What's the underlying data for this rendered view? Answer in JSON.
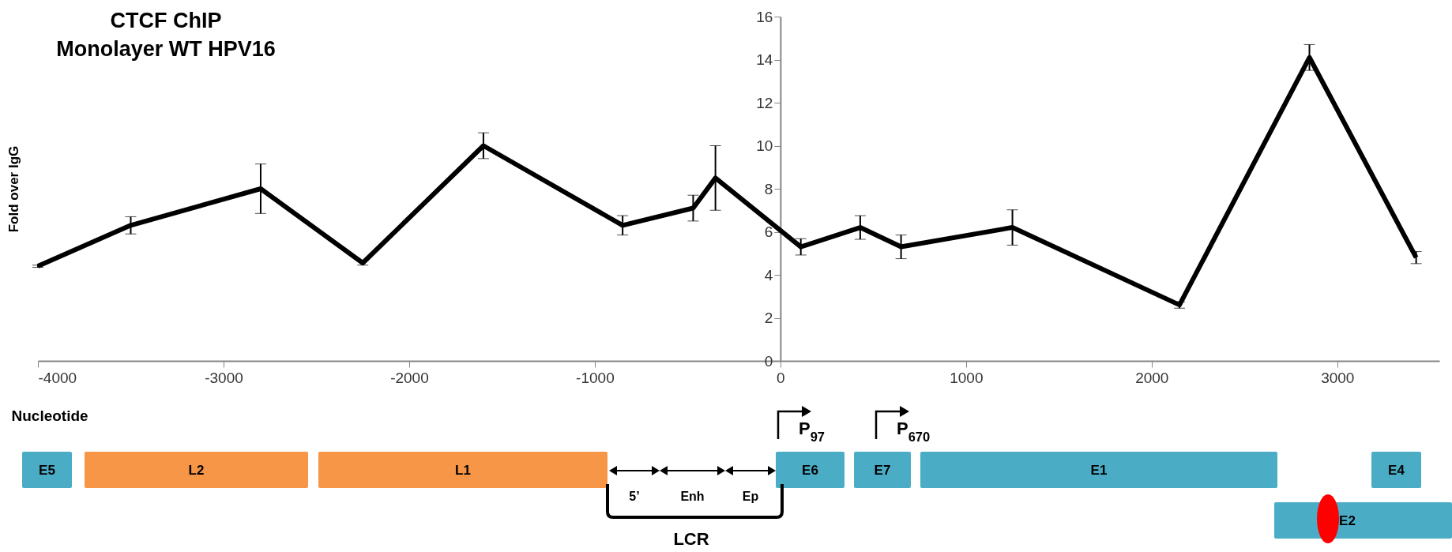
{
  "chart_data": {
    "type": "line",
    "title": "CTCF ChIP",
    "subtitle": "Monolayer WT HPV16",
    "xlabel": "Nucleotide",
    "ylabel": "Fold over IgG",
    "x": [
      -4000,
      -3500,
      -2800,
      -2250,
      -1600,
      -850,
      -470,
      -350,
      110,
      430,
      650,
      1250,
      2150,
      2850,
      3425
    ],
    "series": [
      {
        "color": "#000000",
        "values": [
          4.4,
          6.3,
          8.0,
          4.55,
          10.0,
          6.3,
          7.1,
          8.5,
          5.3,
          6.2,
          5.3,
          6.2,
          2.6,
          14.1,
          4.8
        ],
        "errors": [
          0.05,
          0.4,
          1.15,
          0.1,
          0.6,
          0.45,
          0.6,
          1.5,
          0.38,
          0.55,
          0.55,
          0.82,
          0.15,
          0.6,
          0.28
        ]
      }
    ],
    "xlim": [
      -4000,
      3550
    ],
    "xticks": [
      -4000,
      -3000,
      -2000,
      -1000,
      0,
      1000,
      2000,
      3000
    ],
    "ylim": [
      0,
      16
    ],
    "yticks": [
      0,
      2,
      4,
      6,
      8,
      10,
      12,
      14,
      16
    ],
    "grid": false,
    "line_style": "solid",
    "annotations": [
      "E5",
      "L2",
      "L1",
      "5’",
      "Enh",
      "Ep",
      "E6",
      "E7",
      "E1",
      "E4",
      "E2",
      "LCR",
      "P$_{97}$",
      "P$_{670}$"
    ]
  }
}
